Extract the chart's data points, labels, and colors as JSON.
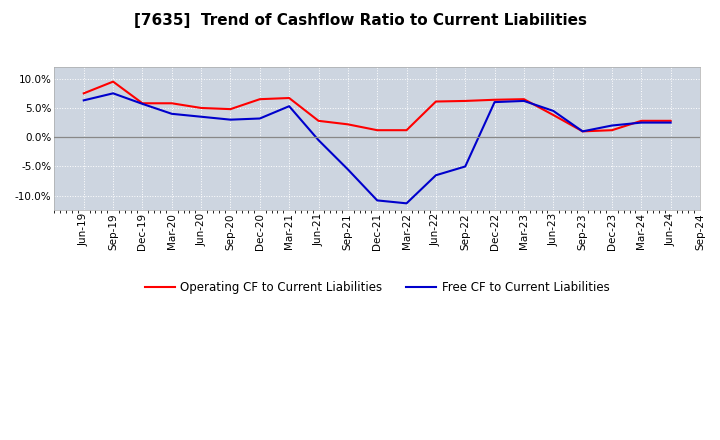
{
  "title": "[7635]  Trend of Cashflow Ratio to Current Liabilities",
  "x_labels": [
    "Jun-19",
    "Sep-19",
    "Dec-19",
    "Mar-20",
    "Jun-20",
    "Sep-20",
    "Dec-20",
    "Mar-21",
    "Jun-21",
    "Sep-21",
    "Dec-21",
    "Mar-22",
    "Jun-22",
    "Sep-22",
    "Dec-22",
    "Mar-23",
    "Jun-23",
    "Sep-23",
    "Dec-23",
    "Mar-24",
    "Jun-24",
    "Sep-24"
  ],
  "operating_cf": [
    7.5,
    9.5,
    5.8,
    5.8,
    5.0,
    4.8,
    6.5,
    6.7,
    2.8,
    2.2,
    1.2,
    1.2,
    6.1,
    6.2,
    6.4,
    6.5,
    3.8,
    1.0,
    1.2,
    2.8,
    2.8,
    null
  ],
  "free_cf": [
    6.3,
    7.5,
    5.7,
    4.0,
    3.5,
    3.0,
    3.2,
    5.3,
    -0.5,
    -5.5,
    -10.8,
    -11.3,
    -6.5,
    -5.0,
    6.0,
    6.2,
    4.5,
    1.0,
    2.0,
    2.5,
    2.5,
    null
  ],
  "operating_color": "#ff0000",
  "free_color": "#0000cc",
  "fig_background_color": "#ffffff",
  "plot_bg_color": "#cdd5e0",
  "ylim": [
    -12.5,
    12.0
  ],
  "yticks": [
    -10.0,
    -5.0,
    0.0,
    5.0,
    10.0
  ],
  "ytick_labels": [
    "-10.0%",
    "-5.0%",
    "0.0%",
    "5.0%",
    "10.0%"
  ],
  "legend_op": "Operating CF to Current Liabilities",
  "legend_free": "Free CF to Current Liabilities",
  "line_width": 1.5,
  "title_fontsize": 11,
  "tick_fontsize": 7.5,
  "legend_fontsize": 8.5
}
